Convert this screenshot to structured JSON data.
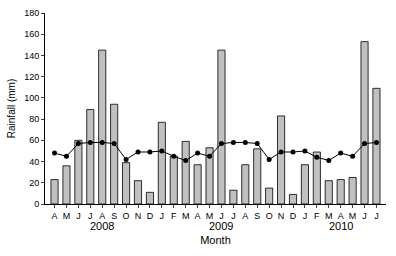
{
  "chart_data": {
    "type": "bar",
    "x_label": "Month",
    "y_label": "Rainfall (mm)",
    "categories": [
      "A",
      "M",
      "J",
      "J",
      "A",
      "S",
      "O",
      "N",
      "D",
      "J",
      "F",
      "M",
      "A",
      "M",
      "J",
      "J",
      "A",
      "S",
      "O",
      "N",
      "D",
      "J",
      "F",
      "M",
      "A",
      "M",
      "J",
      "J"
    ],
    "series": [
      {
        "type": "bar",
        "color": "#c0c0c0",
        "values": [
          23,
          36,
          60,
          89,
          145,
          94,
          39,
          22,
          11,
          77,
          45,
          59,
          37,
          53,
          145,
          13,
          37,
          52,
          15,
          83,
          9,
          37,
          49,
          22,
          23,
          25,
          153,
          109
        ]
      },
      {
        "type": "line",
        "color": "#000000",
        "marker": "circle",
        "values": [
          48,
          45,
          57,
          58,
          58,
          57,
          42,
          49,
          49,
          50,
          45,
          41,
          48,
          45,
          57,
          58,
          58,
          57,
          42,
          49,
          49,
          50,
          44,
          41,
          48,
          45,
          57,
          58
        ]
      }
    ],
    "annotations": [
      {
        "text": "2008",
        "x": 4
      },
      {
        "text": "2009",
        "x": 14
      },
      {
        "text": "2010",
        "x": 24
      }
    ],
    "ylim": [
      0,
      180
    ],
    "yticks": [
      0,
      20,
      40,
      60,
      80,
      100,
      120,
      140,
      160,
      180
    ],
    "grid": false
  }
}
